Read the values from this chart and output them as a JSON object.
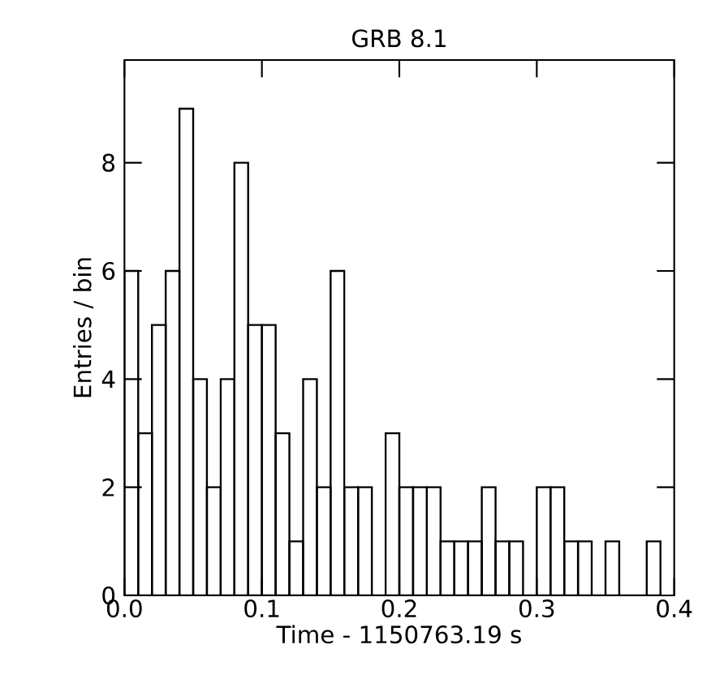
{
  "chart_data": {
    "type": "histogram",
    "title": "GRB 8.1",
    "xlabel": "Time - 1150763.19 s",
    "ylabel": "Entries / bin",
    "bins": [
      0,
      0.01,
      0.02,
      0.03,
      0.04,
      0.05,
      0.06,
      0.07,
      0.08,
      0.09,
      0.1,
      0.11,
      0.12,
      0.13,
      0.14,
      0.15,
      0.16,
      0.17,
      0.18,
      0.19,
      0.2,
      0.21,
      0.22,
      0.23,
      0.24,
      0.25,
      0.26,
      0.27,
      0.28,
      0.29,
      0.3,
      0.31,
      0.32,
      0.33,
      0.34,
      0.35,
      0.36,
      0.37,
      0.38,
      0.39
    ],
    "values": [
      6,
      3,
      5,
      6,
      9,
      4,
      2,
      4,
      8,
      5,
      5,
      3,
      1,
      4,
      2,
      6,
      2,
      2,
      0,
      3,
      2,
      2,
      2,
      1,
      1,
      1,
      2,
      1,
      1,
      0,
      2,
      2,
      1,
      1,
      0,
      1,
      0,
      0,
      1
    ],
    "color": "#000000",
    "xlim": [
      0,
      0.4
    ],
    "ylim": [
      0,
      9.9
    ],
    "xticks": [
      {
        "value": 0,
        "label": "0.0"
      },
      0.1,
      0.2,
      0.3,
      0.4
    ],
    "yticks": [
      0,
      2,
      4,
      6,
      8
    ],
    "grid": false
  }
}
